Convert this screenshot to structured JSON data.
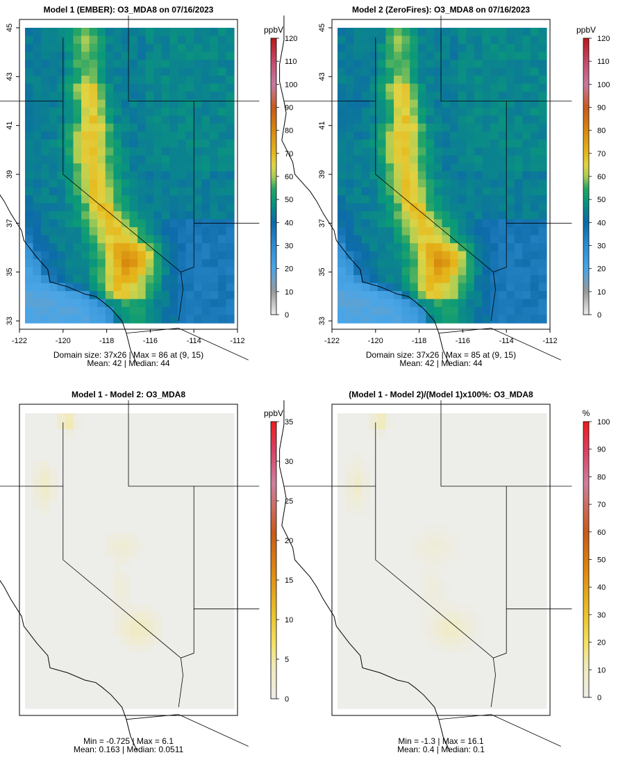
{
  "chart_data": [
    {
      "type": "heatmap",
      "title": "Model 1 (EMBER): O3_MDA8 on 07/16/2023",
      "variable": "O3_MDA8",
      "units": "ppbV",
      "grid": {
        "cols": 37,
        "rows": 26
      },
      "xlim": [
        -122,
        -112
      ],
      "ylim": [
        33,
        45
      ],
      "x_ticks": [
        -122,
        -120,
        -118,
        -116,
        -114,
        -112
      ],
      "y_ticks": [
        33,
        35,
        37,
        39,
        41,
        43,
        45
      ],
      "colorbar": {
        "min": 0,
        "max": 120,
        "ticks": [
          0,
          10,
          20,
          30,
          40,
          50,
          60,
          70,
          80,
          90,
          100,
          110,
          120
        ]
      },
      "field_hint": "high ozone (60-86 ppbV) along the Central Valley and southern Sierra; ~30-45 ppbV offshore and in the northeast",
      "stats": {
        "line1": "Domain size: 37x26 | Max = 86 at (9, 15)",
        "line2": "Mean: 42 |  Median: 44"
      }
    },
    {
      "type": "heatmap",
      "title": "Model 2 (ZeroFires): O3_MDA8 on 07/16/2023",
      "variable": "O3_MDA8",
      "units": "ppbV",
      "grid": {
        "cols": 37,
        "rows": 26
      },
      "xlim": [
        -122,
        -112
      ],
      "ylim": [
        33,
        45
      ],
      "x_ticks": [
        -122,
        -120,
        -118,
        -116,
        -114,
        -112
      ],
      "y_ticks": [
        33,
        35,
        37,
        39,
        41,
        43,
        45
      ],
      "colorbar": {
        "min": 0,
        "max": 120,
        "ticks": [
          0,
          10,
          20,
          30,
          40,
          50,
          60,
          70,
          80,
          90,
          100,
          110,
          120
        ]
      },
      "field_hint": "nearly identical to Model 1, peak 85 ppbV",
      "stats": {
        "line1": "Domain size: 37x26 | Max = 85 at (9, 15)",
        "line2": "Mean: 42 |  Median: 44"
      }
    },
    {
      "type": "heatmap",
      "title": "Model 1 - Model 2: O3_MDA8",
      "variable": "O3_MDA8",
      "units": "ppbV",
      "grid": {
        "cols": 37,
        "rows": 26
      },
      "colorbar": {
        "min": 0,
        "max": 35,
        "ticks": [
          0,
          5,
          10,
          15,
          20,
          25,
          30,
          35
        ]
      },
      "field_hint": "near zero everywhere; small positive differences up to 6.1 ppbV near the north coast and southern San Joaquin Valley",
      "stats": {
        "line1": "Min = -0.725 | Max = 6.1",
        "line2": "Mean: 0.163 |  Median: 0.0511"
      }
    },
    {
      "type": "heatmap",
      "title": "(Model 1 - Model 2)/(Model 1)x100%: O3_MDA8",
      "variable": "O3_MDA8",
      "units": "%",
      "grid": {
        "cols": 37,
        "rows": 26
      },
      "colorbar": {
        "min": 0,
        "max": 100,
        "ticks": [
          0,
          10,
          20,
          30,
          40,
          50,
          60,
          70,
          80,
          90,
          100
        ]
      },
      "field_hint": "near zero everywhere; small positive percent differences up to 16.1% near the north coast",
      "stats": {
        "line1": "Min = -1.3 | Max = 16.1",
        "line2": "Mean: 0.4 |  Median: 0.1"
      }
    }
  ]
}
